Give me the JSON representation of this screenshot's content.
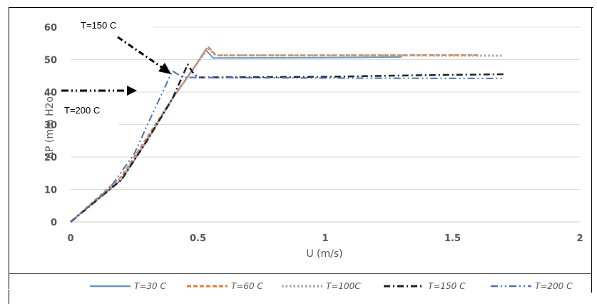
{
  "chart_data": {
    "type": "line",
    "xlabel": "U (m/s)",
    "ylabel": "ΔP (mm H2o)",
    "xlim": [
      0,
      2
    ],
    "ylim": [
      0,
      60
    ],
    "x_ticks": [
      "0",
      "0.5",
      "1",
      "1.5",
      "2"
    ],
    "y_ticks": [
      "0",
      "10",
      "20",
      "30",
      "40",
      "50",
      "60"
    ],
    "grid": "horizontal",
    "legend_position": "bottom",
    "series": [
      {
        "name": "T=30 C",
        "color": "#5b9bd5",
        "dash": "solid",
        "points": [
          [
            0,
            0
          ],
          [
            0.2,
            13
          ],
          [
            0.3,
            25
          ],
          [
            0.4,
            38
          ],
          [
            0.48,
            47
          ],
          [
            0.53,
            53
          ],
          [
            0.56,
            50.5
          ],
          [
            1.0,
            50.6
          ],
          [
            1.3,
            50.8
          ]
        ]
      },
      {
        "name": "T=60 C",
        "color": "#ed7d31",
        "dash": "dash",
        "points": [
          [
            0,
            0
          ],
          [
            0.2,
            14
          ],
          [
            0.3,
            26
          ],
          [
            0.4,
            38
          ],
          [
            0.48,
            47
          ],
          [
            0.54,
            54
          ],
          [
            0.57,
            51.3
          ],
          [
            1.0,
            51.3
          ],
          [
            1.6,
            51.4
          ]
        ]
      },
      {
        "name": "T=100C",
        "color": "#a5a5a5",
        "dash": "dot",
        "points": [
          [
            0,
            0
          ],
          [
            0.2,
            13.5
          ],
          [
            0.3,
            25.5
          ],
          [
            0.4,
            38
          ],
          [
            0.48,
            47
          ],
          [
            0.54,
            53.5
          ],
          [
            0.57,
            51.3
          ],
          [
            1.0,
            51.3
          ],
          [
            1.7,
            51.2
          ]
        ]
      },
      {
        "name": "T=150 C",
        "color": "#222222",
        "dash": "dashdot",
        "points": [
          [
            0,
            0
          ],
          [
            0.2,
            13
          ],
          [
            0.3,
            25
          ],
          [
            0.4,
            38
          ],
          [
            0.46,
            48.5
          ],
          [
            0.48,
            46
          ],
          [
            0.5,
            44.5
          ],
          [
            1.0,
            44.7
          ],
          [
            1.4,
            45.2
          ],
          [
            1.7,
            45.5
          ]
        ]
      },
      {
        "name": "T=200 C",
        "color": "#4472c4",
        "dash": "dashdotdot",
        "points": [
          [
            0,
            0
          ],
          [
            0.15,
            10
          ],
          [
            0.25,
            21
          ],
          [
            0.32,
            33
          ],
          [
            0.4,
            46.5
          ],
          [
            0.44,
            44.5
          ],
          [
            1.0,
            44.3
          ],
          [
            1.7,
            44.2
          ]
        ]
      }
    ],
    "annotations": [
      {
        "text": "T=150 C"
      },
      {
        "text": "T=200 C"
      }
    ]
  }
}
